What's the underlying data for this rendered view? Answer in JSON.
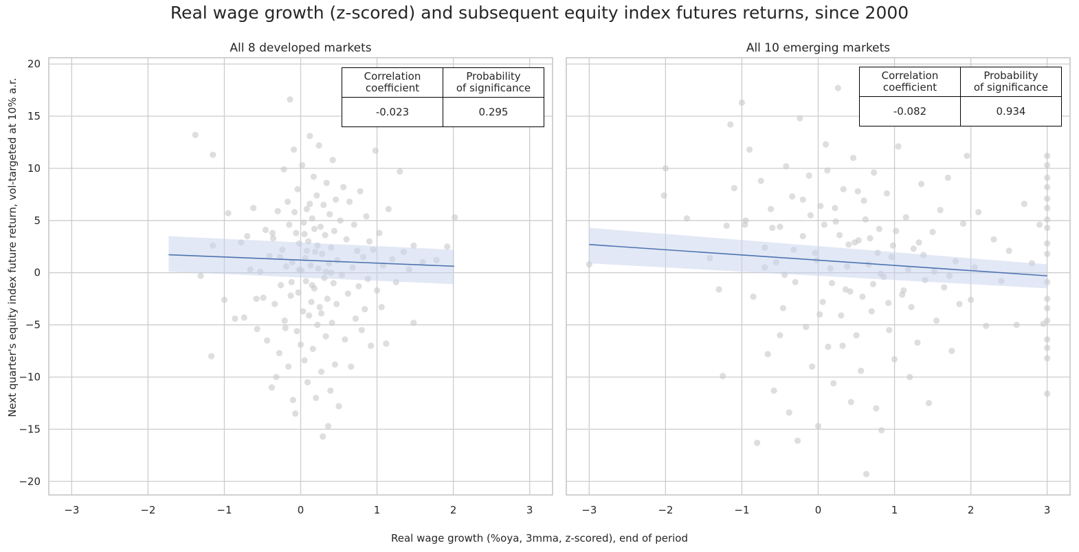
{
  "figure": {
    "title": "Real wage growth (z-scored) and subsequent equity index futures returns, since 2000",
    "xlabel": "Real wage growth (%oya, 3mma, z-scored), end of period",
    "ylabel": "Next quarter's equity index future return, vol-targeted at 10% a.r."
  },
  "colors": {
    "scatter": "#c8c8c8",
    "regression_line": "#4c72b0",
    "confidence_band": "#c5d2ec",
    "grid": "#cccccc",
    "axes_edge": "#cccccc"
  },
  "panels": [
    {
      "title": "All 8 developed markets",
      "stats": {
        "headers": [
          [
            "Correlation",
            "coefficient"
          ],
          [
            "Probability",
            "of significance"
          ]
        ],
        "values": [
          "-0.023",
          "0.295"
        ]
      }
    },
    {
      "title": "All 10 emerging markets",
      "stats": {
        "headers": [
          [
            "Correlation",
            "coefficient"
          ],
          [
            "Probability",
            "of significance"
          ]
        ],
        "values": [
          "-0.082",
          "0.934"
        ]
      }
    }
  ],
  "chart_data": [
    {
      "type": "scatter",
      "title": "All 8 developed markets",
      "xlim": [
        -3.3,
        3.3
      ],
      "ylim": [
        -21.3,
        20.6
      ],
      "xticks": [
        -3,
        -2,
        -1,
        0,
        1,
        2,
        3
      ],
      "yticks": [
        -20,
        -15,
        -10,
        -5,
        0,
        5,
        10,
        15,
        20
      ],
      "grid": true,
      "regression": {
        "x": [
          -1.73,
          2.01
        ],
        "y": [
          1.72,
          0.62
        ],
        "band_low": [
          0.1,
          -1.1
        ],
        "band_high": [
          3.5,
          2.2
        ]
      },
      "points": [
        [
          -1.38,
          13.2
        ],
        [
          -1.15,
          11.3
        ],
        [
          -1.31,
          -0.3
        ],
        [
          -1.17,
          -8.0
        ],
        [
          -1.15,
          2.6
        ],
        [
          -1.0,
          -2.6
        ],
        [
          -0.95,
          5.7
        ],
        [
          -0.86,
          -4.4
        ],
        [
          -0.78,
          2.9
        ],
        [
          -0.74,
          -4.3
        ],
        [
          -0.7,
          3.5
        ],
        [
          -0.66,
          0.3
        ],
        [
          -0.62,
          6.2
        ],
        [
          -0.57,
          -5.4
        ],
        [
          -0.53,
          0.1
        ],
        [
          -0.49,
          -2.4
        ],
        [
          -0.46,
          4.1
        ],
        [
          -0.44,
          -6.5
        ],
        [
          -0.41,
          1.6
        ],
        [
          -0.38,
          -11.0
        ],
        [
          -0.36,
          3.3
        ],
        [
          -0.34,
          -3.0
        ],
        [
          -0.32,
          -10.0
        ],
        [
          -0.3,
          5.9
        ],
        [
          -0.28,
          -7.7
        ],
        [
          -0.26,
          -1.2
        ],
        [
          -0.24,
          2.2
        ],
        [
          -0.22,
          9.9
        ],
        [
          -0.21,
          -4.6
        ],
        [
          -0.19,
          0.6
        ],
        [
          -0.17,
          6.8
        ],
        [
          -0.16,
          -9.0
        ],
        [
          -0.14,
          16.6
        ],
        [
          -0.13,
          -2.2
        ],
        [
          -0.11,
          1.0
        ],
        [
          -0.1,
          -12.2
        ],
        [
          -0.09,
          11.8
        ],
        [
          -0.07,
          -13.5
        ],
        [
          -0.06,
          3.8
        ],
        [
          -0.05,
          -5.6
        ],
        [
          -0.04,
          8.0
        ],
        [
          -0.03,
          -1.9
        ],
        [
          -0.02,
          2.8
        ],
        [
          0.0,
          -6.9
        ],
        [
          0.01,
          0.2
        ],
        [
          0.02,
          10.3
        ],
        [
          0.03,
          -3.7
        ],
        [
          0.04,
          4.8
        ],
        [
          0.05,
          -8.4
        ],
        [
          0.06,
          1.4
        ],
        [
          0.07,
          -0.8
        ],
        [
          0.08,
          6.1
        ],
        [
          0.09,
          -10.5
        ],
        [
          0.1,
          3.0
        ],
        [
          0.11,
          -4.1
        ],
        [
          0.12,
          13.1
        ],
        [
          0.13,
          0.7
        ],
        [
          0.14,
          -2.8
        ],
        [
          0.15,
          5.2
        ],
        [
          0.16,
          -7.3
        ],
        [
          0.17,
          9.2
        ],
        [
          0.18,
          -1.5
        ],
        [
          0.19,
          2.0
        ],
        [
          0.2,
          -12.0
        ],
        [
          0.21,
          7.4
        ],
        [
          0.22,
          -5.0
        ],
        [
          0.23,
          0.4
        ],
        [
          0.24,
          12.2
        ],
        [
          0.25,
          -3.3
        ],
        [
          0.26,
          4.4
        ],
        [
          0.27,
          -9.5
        ],
        [
          0.28,
          1.8
        ],
        [
          0.29,
          -15.7
        ],
        [
          0.3,
          6.5
        ],
        [
          0.31,
          -0.5
        ],
        [
          0.32,
          3.6
        ],
        [
          0.33,
          -6.1
        ],
        [
          0.34,
          8.6
        ],
        [
          0.35,
          -2.5
        ],
        [
          0.36,
          -14.7
        ],
        [
          0.37,
          0.9
        ],
        [
          0.38,
          5.6
        ],
        [
          0.39,
          -11.3
        ],
        [
          0.4,
          2.4
        ],
        [
          0.41,
          -4.8
        ],
        [
          0.42,
          10.8
        ],
        [
          0.43,
          -1.0
        ],
        [
          0.44,
          4.0
        ],
        [
          0.45,
          -8.8
        ],
        [
          0.46,
          7.0
        ],
        [
          0.47,
          -3.0
        ],
        [
          0.48,
          1.2
        ],
        [
          0.5,
          -12.8
        ],
        [
          0.52,
          5.0
        ],
        [
          0.54,
          -0.2
        ],
        [
          0.56,
          8.2
        ],
        [
          0.58,
          -6.4
        ],
        [
          0.6,
          3.2
        ],
        [
          0.62,
          -2.0
        ],
        [
          0.64,
          6.8
        ],
        [
          0.66,
          -9.0
        ],
        [
          0.68,
          0.5
        ],
        [
          0.7,
          4.6
        ],
        [
          0.72,
          -4.4
        ],
        [
          0.74,
          2.1
        ],
        [
          0.76,
          -1.3
        ],
        [
          0.78,
          7.8
        ],
        [
          0.8,
          -5.5
        ],
        [
          0.82,
          1.5
        ],
        [
          0.84,
          -3.5
        ],
        [
          0.86,
          5.4
        ],
        [
          0.88,
          -0.6
        ],
        [
          0.9,
          3.0
        ],
        [
          0.92,
          -7.0
        ],
        [
          0.95,
          2.2
        ],
        [
          0.98,
          11.7
        ],
        [
          1.0,
          -1.7
        ],
        [
          1.03,
          3.8
        ],
        [
          1.06,
          -3.3
        ],
        [
          1.08,
          0.7
        ],
        [
          1.12,
          -6.8
        ],
        [
          1.15,
          6.1
        ],
        [
          1.2,
          1.3
        ],
        [
          1.25,
          -0.9
        ],
        [
          1.3,
          9.7
        ],
        [
          1.35,
          2.0
        ],
        [
          1.42,
          0.3
        ],
        [
          1.48,
          2.6
        ],
        [
          1.48,
          -4.8
        ],
        [
          1.6,
          1.0
        ],
        [
          1.78,
          1.2
        ],
        [
          1.92,
          2.5
        ],
        [
          2.02,
          5.3
        ],
        [
          -0.58,
          -2.5
        ],
        [
          -0.37,
          3.8
        ],
        [
          -0.15,
          4.6
        ],
        [
          0.05,
          3.7
        ],
        [
          0.18,
          4.2
        ],
        [
          -0.27,
          1.5
        ],
        [
          0.33,
          0.1
        ],
        [
          -0.08,
          5.8
        ],
        [
          0.12,
          6.6
        ],
        [
          -0.12,
          -0.9
        ],
        [
          0.27,
          -3.9
        ],
        [
          -0.02,
          0.3
        ],
        [
          0.08,
          2.1
        ],
        [
          0.22,
          2.6
        ],
        [
          -0.2,
          -5.3
        ],
        [
          0.15,
          -1.2
        ],
        [
          0.4,
          0.0
        ]
      ]
    },
    {
      "type": "scatter",
      "title": "All 10 emerging markets",
      "xlim": [
        -3.3,
        3.3
      ],
      "ylim": [
        -21.3,
        20.6
      ],
      "xticks": [
        -3,
        -2,
        -1,
        0,
        1,
        2,
        3
      ],
      "yticks": [
        -20,
        -15,
        -10,
        -5,
        0,
        5,
        10,
        15,
        20
      ],
      "grid": true,
      "regression": {
        "x": [
          -3.0,
          3.0
        ],
        "y": [
          2.7,
          -0.3
        ],
        "band_low": [
          0.9,
          -1.5
        ],
        "band_high": [
          4.3,
          0.8
        ]
      },
      "points": [
        [
          -3.0,
          0.8
        ],
        [
          -2.0,
          10.0
        ],
        [
          -2.02,
          7.4
        ],
        [
          -1.72,
          5.2
        ],
        [
          -1.15,
          14.2
        ],
        [
          -1.1,
          8.1
        ],
        [
          -1.0,
          16.3
        ],
        [
          -0.96,
          4.6
        ],
        [
          -0.9,
          11.8
        ],
        [
          -0.85,
          -2.3
        ],
        [
          -0.8,
          -16.3
        ],
        [
          -0.75,
          8.8
        ],
        [
          -0.7,
          2.4
        ],
        [
          -0.66,
          -7.8
        ],
        [
          -0.62,
          6.1
        ],
        [
          -0.58,
          -11.3
        ],
        [
          -0.55,
          1.0
        ],
        [
          -0.5,
          4.4
        ],
        [
          -0.46,
          -3.4
        ],
        [
          -0.42,
          10.2
        ],
        [
          -0.38,
          -13.4
        ],
        [
          -0.34,
          7.3
        ],
        [
          -0.3,
          -0.9
        ],
        [
          -0.27,
          -16.1
        ],
        [
          -0.24,
          14.8
        ],
        [
          -0.2,
          3.5
        ],
        [
          -0.16,
          -5.2
        ],
        [
          -0.12,
          9.3
        ],
        [
          -0.08,
          -9.0
        ],
        [
          -0.04,
          1.9
        ],
        [
          0.0,
          -14.7
        ],
        [
          0.03,
          6.4
        ],
        [
          0.06,
          -2.8
        ],
        [
          0.1,
          12.3
        ],
        [
          0.13,
          -7.1
        ],
        [
          0.16,
          0.4
        ],
        [
          0.2,
          -10.6
        ],
        [
          0.23,
          4.9
        ],
        [
          0.26,
          17.7
        ],
        [
          0.3,
          -4.1
        ],
        [
          0.33,
          8.0
        ],
        [
          0.36,
          -1.6
        ],
        [
          0.4,
          2.7
        ],
        [
          0.43,
          -12.4
        ],
        [
          0.46,
          11.0
        ],
        [
          0.5,
          -6.0
        ],
        [
          0.53,
          3.1
        ],
        [
          0.56,
          -9.4
        ],
        [
          0.6,
          6.9
        ],
        [
          0.63,
          -19.3
        ],
        [
          0.66,
          0.8
        ],
        [
          0.7,
          -3.7
        ],
        [
          0.73,
          9.6
        ],
        [
          0.76,
          -13.0
        ],
        [
          0.8,
          4.2
        ],
        [
          0.83,
          -15.1
        ],
        [
          0.86,
          -0.4
        ],
        [
          0.9,
          7.6
        ],
        [
          0.93,
          -5.5
        ],
        [
          0.96,
          1.5
        ],
        [
          1.0,
          -8.3
        ],
        [
          1.05,
          12.1
        ],
        [
          1.1,
          -2.1
        ],
        [
          1.15,
          5.3
        ],
        [
          1.2,
          -10.0
        ],
        [
          1.25,
          2.3
        ],
        [
          1.3,
          -6.7
        ],
        [
          1.35,
          8.5
        ],
        [
          1.4,
          -0.7
        ],
        [
          1.45,
          -12.5
        ],
        [
          1.5,
          3.9
        ],
        [
          1.55,
          -4.6
        ],
        [
          1.6,
          6.0
        ],
        [
          1.65,
          -1.4
        ],
        [
          1.7,
          9.1
        ],
        [
          1.75,
          -7.5
        ],
        [
          1.8,
          1.1
        ],
        [
          1.85,
          -3.0
        ],
        [
          1.9,
          4.7
        ],
        [
          1.95,
          11.2
        ],
        [
          2.0,
          -2.6
        ],
        [
          2.05,
          0.5
        ],
        [
          2.1,
          5.8
        ],
        [
          2.2,
          -5.1
        ],
        [
          2.3,
          3.2
        ],
        [
          2.4,
          -0.8
        ],
        [
          2.5,
          2.1
        ],
        [
          2.6,
          -5.0
        ],
        [
          2.7,
          6.6
        ],
        [
          2.8,
          0.9
        ],
        [
          2.9,
          4.6
        ],
        [
          3.0,
          11.2
        ],
        [
          3.0,
          10.3
        ],
        [
          3.0,
          9.1
        ],
        [
          3.0,
          8.2
        ],
        [
          3.0,
          7.1
        ],
        [
          3.0,
          6.2
        ],
        [
          3.0,
          5.1
        ],
        [
          3.0,
          4.3
        ],
        [
          3.0,
          2.8
        ],
        [
          3.0,
          1.8
        ],
        [
          3.0,
          -0.9
        ],
        [
          3.0,
          -2.5
        ],
        [
          3.0,
          -3.4
        ],
        [
          3.0,
          -4.6
        ],
        [
          3.0,
          -6.4
        ],
        [
          3.0,
          -7.2
        ],
        [
          3.0,
          -8.2
        ],
        [
          3.0,
          -11.6
        ],
        [
          2.95,
          -4.9
        ],
        [
          -0.6,
          4.3
        ],
        [
          -0.32,
          2.2
        ],
        [
          -0.1,
          5.5
        ],
        [
          0.08,
          4.6
        ],
        [
          0.28,
          3.6
        ],
        [
          0.48,
          2.9
        ],
        [
          0.68,
          3.3
        ],
        [
          -0.44,
          -0.2
        ],
        [
          0.18,
          -1.0
        ],
        [
          0.38,
          0.6
        ],
        [
          0.58,
          -2.3
        ],
        [
          0.78,
          1.9
        ],
        [
          0.98,
          2.6
        ],
        [
          1.18,
          0.3
        ],
        [
          1.38,
          1.7
        ],
        [
          -0.2,
          7.0
        ],
        [
          0.02,
          -4.0
        ],
        [
          0.22,
          6.2
        ],
        [
          0.42,
          -1.8
        ],
        [
          0.62,
          5.1
        ],
        [
          0.82,
          -0.1
        ],
        [
          1.02,
          4.0
        ],
        [
          1.22,
          -3.3
        ],
        [
          -0.5,
          -6.0
        ],
        [
          -0.02,
          1.2
        ],
        [
          0.32,
          -7.0
        ],
        [
          0.72,
          -1.1
        ],
        [
          1.12,
          -1.7
        ],
        [
          1.52,
          0.1
        ],
        [
          -0.7,
          0.5
        ],
        [
          0.12,
          9.8
        ],
        [
          0.52,
          7.8
        ],
        [
          0.92,
          -2.9
        ],
        [
          1.32,
          2.9
        ],
        [
          1.72,
          -0.3
        ],
        [
          -1.2,
          4.5
        ],
        [
          -1.3,
          -1.6
        ],
        [
          -1.42,
          1.4
        ],
        [
          -1.25,
          -9.9
        ],
        [
          -0.95,
          5.0
        ]
      ]
    }
  ]
}
